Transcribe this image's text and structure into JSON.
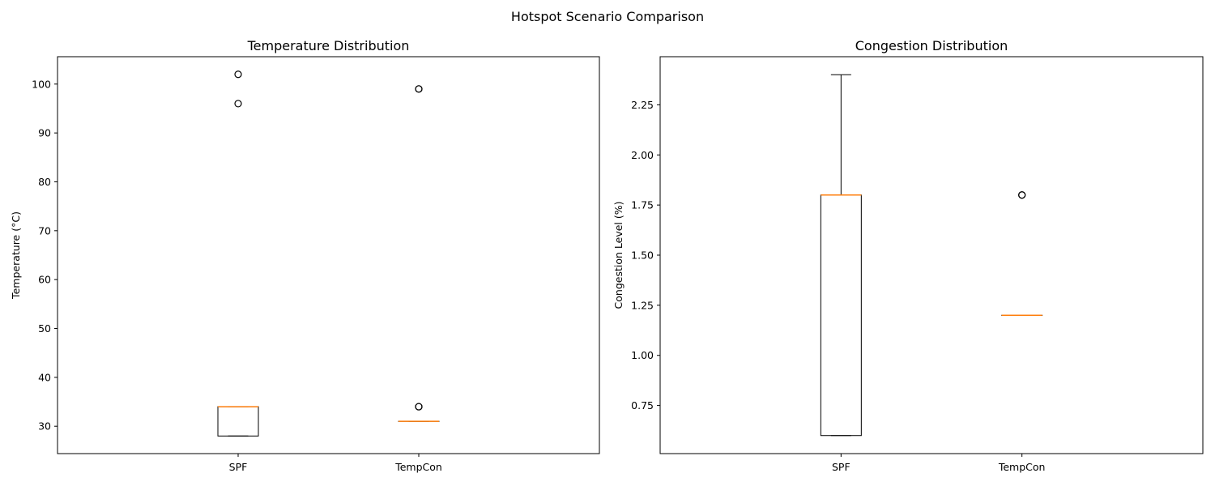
{
  "figure": {
    "title": "Hotspot Scenario Comparison"
  },
  "chart_data": [
    {
      "type": "boxplot",
      "title": "Temperature Distribution",
      "xlabel": "",
      "ylabel": "Temperature (°C)",
      "categories": [
        "SPF",
        "TempCon"
      ],
      "ylim": [
        24.4,
        105.6
      ],
      "yticks": [
        30,
        40,
        50,
        60,
        70,
        80,
        90,
        100
      ],
      "boxes": [
        {
          "category": "SPF",
          "whislo": 28,
          "q1": 28,
          "med": 34,
          "q3": 34,
          "whishi": 34,
          "fliers": [
            96,
            102
          ]
        },
        {
          "category": "TempCon",
          "whislo": 31,
          "q1": 31,
          "med": 31,
          "q3": 31,
          "whishi": 31,
          "fliers": [
            34,
            34,
            99,
            99
          ]
        }
      ],
      "colors": {
        "median": "#ff7f0e",
        "box": "#000000"
      }
    },
    {
      "type": "boxplot",
      "title": "Congestion Distribution",
      "xlabel": "",
      "ylabel": "Congestion Level (%)",
      "categories": [
        "SPF",
        "TempCon"
      ],
      "ylim": [
        0.51,
        2.49
      ],
      "yticks": [
        0.75,
        1.0,
        1.25,
        1.5,
        1.75,
        2.0,
        2.25
      ],
      "boxes": [
        {
          "category": "SPF",
          "whislo": 0.6,
          "q1": 0.6,
          "med": 1.8,
          "q3": 1.8,
          "whishi": 2.4,
          "fliers": []
        },
        {
          "category": "TempCon",
          "whislo": 1.2,
          "q1": 1.2,
          "med": 1.2,
          "q3": 1.2,
          "whishi": 1.2,
          "fliers": [
            1.8,
            1.8
          ]
        }
      ],
      "colors": {
        "median": "#ff7f0e",
        "box": "#000000"
      }
    }
  ]
}
